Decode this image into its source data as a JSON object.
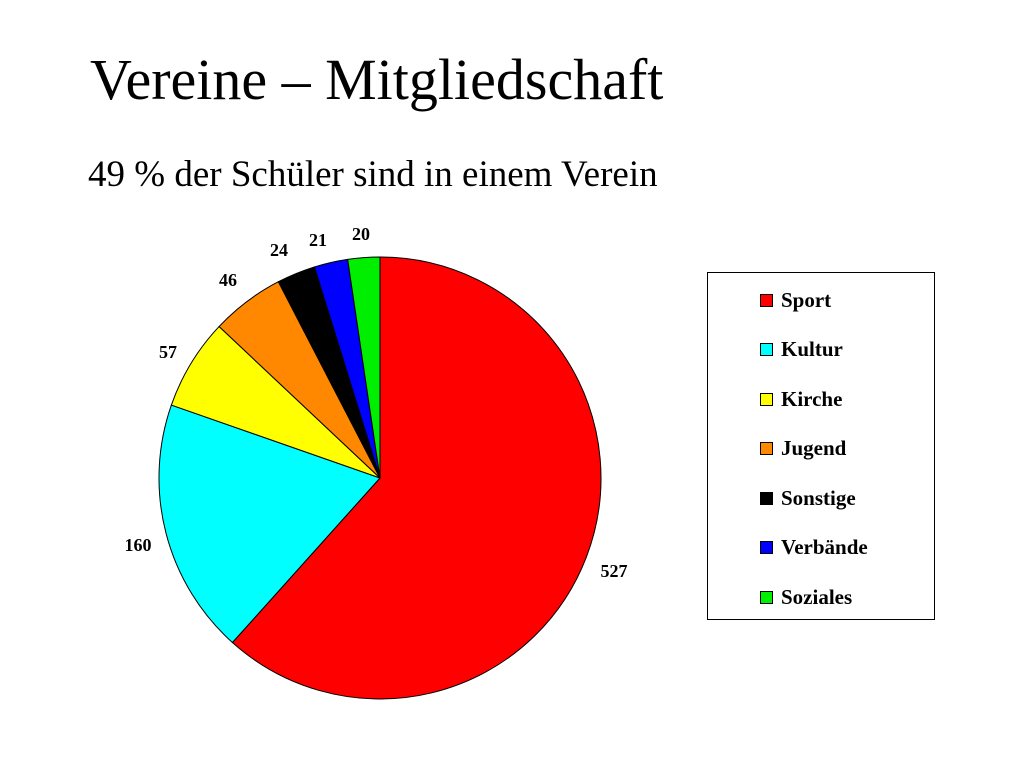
{
  "page": {
    "title": "Vereine – Mitgliedschaft",
    "subtitle": "49 % der Schüler sind in einem Verein"
  },
  "chart_data": {
    "type": "pie",
    "title": "",
    "categories": [
      "Sport",
      "Kultur",
      "Kirche",
      "Jugend",
      "Sonstige",
      "Verbände",
      "Soziales"
    ],
    "values": [
      527,
      160,
      57,
      46,
      24,
      21,
      20
    ],
    "colors": [
      "#ff0000",
      "#00ffff",
      "#ffff00",
      "#ff8800",
      "#000000",
      "#0000ff",
      "#00ee00"
    ],
    "data_labels": [
      "527",
      "160",
      "57",
      "46",
      "24",
      "21",
      "20"
    ],
    "start": "12 o'clock",
    "direction": "clockwise",
    "legend": {
      "placement": "right",
      "items": [
        "Sport",
        "Kultur",
        "Kirche",
        "Jugend",
        "Sonstige",
        "Verbände",
        "Soziales"
      ]
    }
  }
}
